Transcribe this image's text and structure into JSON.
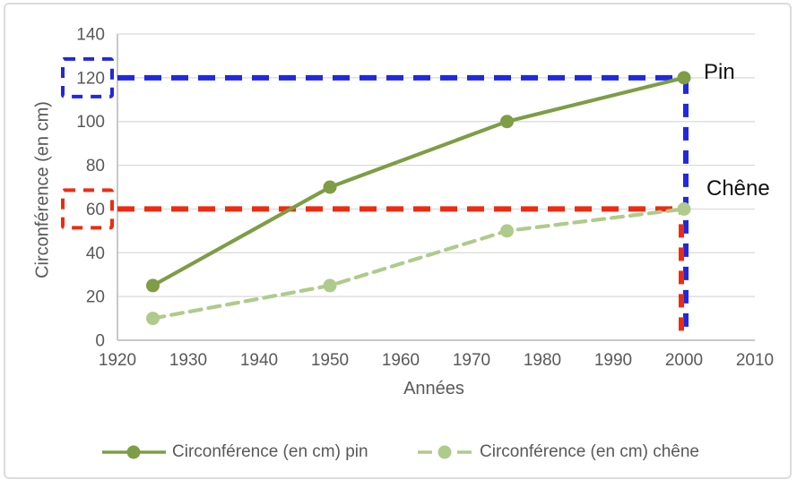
{
  "chart_data": {
    "type": "line",
    "title": "",
    "xlabel": "Années",
    "ylabel": "Circonférence (en cm)",
    "x": [
      1925,
      1950,
      1975,
      2000
    ],
    "series": [
      {
        "name": "Circonférence (en cm) pin",
        "values": [
          25,
          70,
          100,
          120
        ],
        "color": "#7e9d45",
        "dash": "solid"
      },
      {
        "name": "Circonférence (en cm) chêne",
        "values": [
          10,
          25,
          50,
          60
        ],
        "color": "#afcb8b",
        "dash": "dashed"
      }
    ],
    "xlim": [
      1920,
      2010
    ],
    "ylim": [
      0,
      140
    ],
    "x_ticks": [
      1920,
      1930,
      1940,
      1950,
      1960,
      1970,
      1980,
      1990,
      2000,
      2010
    ],
    "y_ticks": [
      0,
      20,
      40,
      60,
      80,
      100,
      120,
      140
    ],
    "grid": true,
    "legend_position": "bottom",
    "tick_color": "#595959",
    "gridline_color": "#d9d9d9",
    "axis_line_color": "#bfbfbf"
  },
  "annotations": {
    "pin_label": "Pin",
    "chene_label": "Chêne",
    "guides": [
      {
        "color": "#2028e0",
        "y_value": 120,
        "x_value": 2000,
        "boxed_tick": "120"
      },
      {
        "color": "#ee2b10",
        "y_value": 60,
        "x_value": 2000,
        "boxed_tick": "60"
      }
    ]
  },
  "legend": {
    "items": [
      {
        "label": "Circonférence (en cm) pin",
        "color": "#7e9d45",
        "style": "solid"
      },
      {
        "label": "Circonférence (en cm) chêne",
        "color": "#afcb8b",
        "style": "dashed"
      }
    ]
  }
}
